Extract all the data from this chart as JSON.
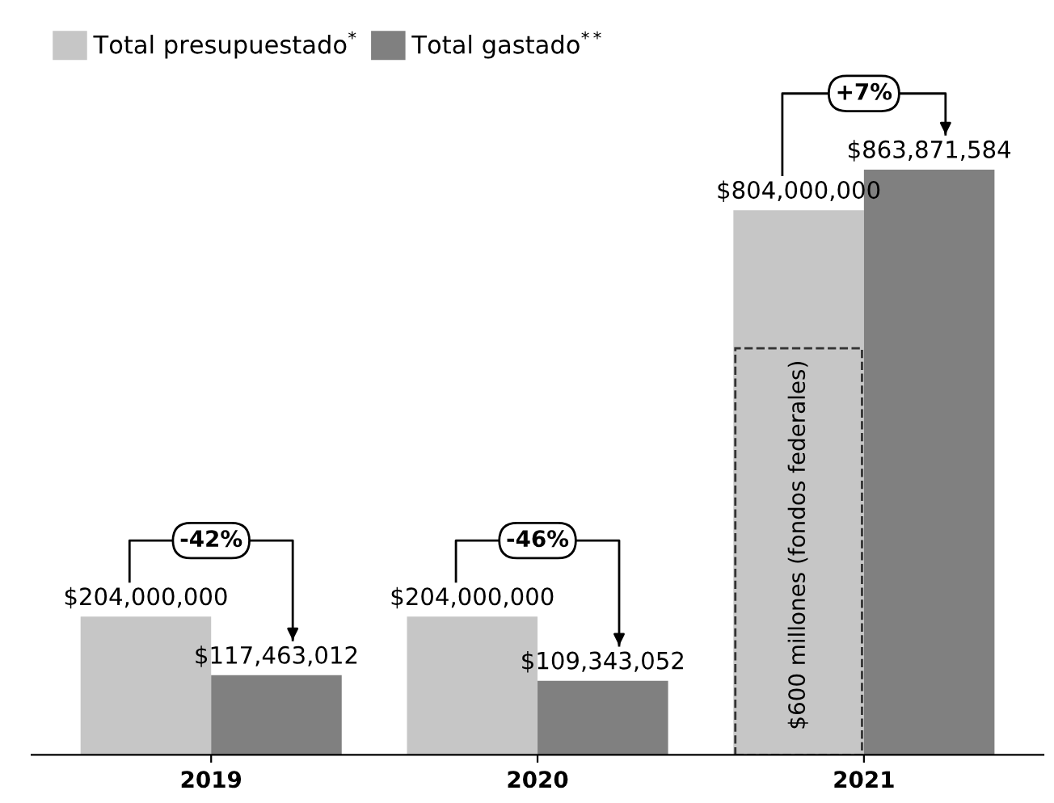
{
  "chart_data": {
    "type": "bar",
    "categories": [
      "2019",
      "2020",
      "2021"
    ],
    "series": [
      {
        "name": "Total presupuestado$^{*}$",
        "color": "#c6c6c6",
        "values": [
          204000000,
          204000000,
          804000000
        ],
        "value_labels": [
          "$204,000,000",
          "$204,000,000",
          "$804,000,000"
        ]
      },
      {
        "name": "Total gastado$^{**}$",
        "color": "#808080",
        "values": [
          117463012,
          109343052,
          863871584
        ],
        "value_labels": [
          "$117,463,012",
          "$109,343,052",
          "$863,871,584"
        ]
      },
      {
        "color": "#333333",
        "line_style": "dashed",
        "values": [
          null,
          null,
          600000000
        ]
      }
    ],
    "legend": "top left",
    "grid": false,
    "annotations": [
      "-42%",
      "-46%",
      "+7%",
      "$600 millones (fondos federales)"
    ]
  }
}
